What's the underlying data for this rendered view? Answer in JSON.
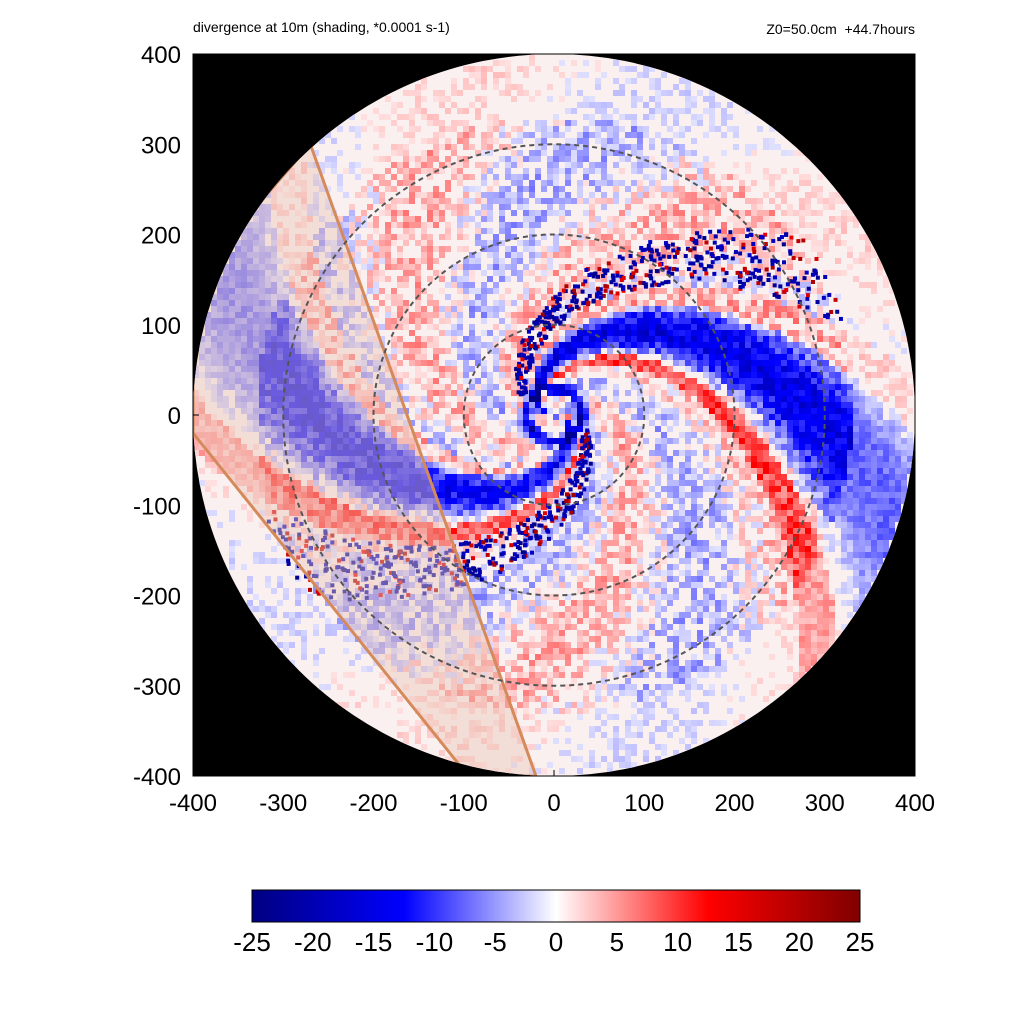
{
  "header": {
    "title": "divergence at 10m (shading, *0.0001 s-1)",
    "run_info": "Z0=50.0cm  +44.7hours"
  },
  "chart_data": {
    "type": "heatmap",
    "title": "divergence at 10m (shading, *0.0001 s-1)",
    "annotation": "Z0=50.0cm  +44.7hours",
    "xlim": [
      -400,
      400
    ],
    "ylim": [
      -400,
      400
    ],
    "xticks": [
      "-400",
      "-300",
      "-200",
      "-100",
      "0",
      "100",
      "200",
      "300",
      "400"
    ],
    "yticks": [
      "400",
      "300",
      "200",
      "100",
      "0",
      "-100",
      "-200",
      "-300",
      "-400"
    ],
    "domain_radius": 400,
    "background_outside_domain": "#000000",
    "range_rings": [
      100,
      200,
      300
    ],
    "colorbar": {
      "ticks": [
        "-25",
        "-20",
        "-15",
        "-10",
        "-5",
        "0",
        "5",
        "10",
        "15",
        "20",
        "25"
      ],
      "range": [
        -25,
        25
      ],
      "colors": [
        "#000080",
        "#0000ff",
        "#ffffff",
        "#ff0000",
        "#800000"
      ]
    },
    "features": {
      "eyewall_radius": 30,
      "spiral_bands": "divergence (red) / convergence (blue) bands spiraling inward",
      "coast_band": "shaded land band along the west edge"
    }
  }
}
